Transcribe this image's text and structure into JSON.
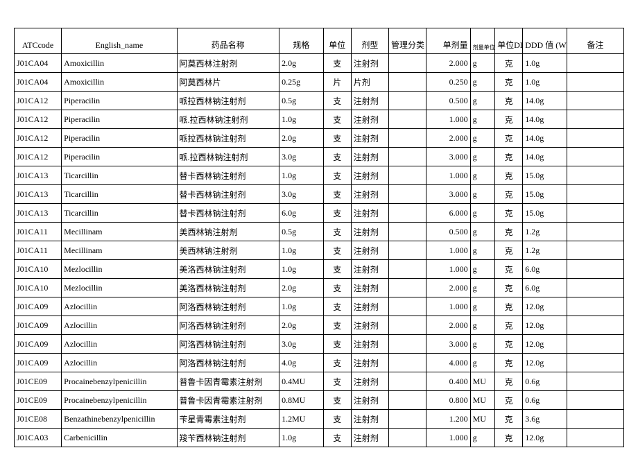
{
  "columns": [
    "ATCcode",
    "English_name",
    "药品名称",
    "规格",
    "单位",
    "剂型",
    "管理分类",
    "单剂量",
    "剂量单位",
    "单位DDD",
    "DDD 值 (WHO)",
    "备注"
  ],
  "rows": [
    [
      "J01CA04",
      "Amoxicillin",
      "阿莫西林注射剂",
      "2.0g",
      "支",
      "注射剂",
      "",
      "2.000",
      "g",
      "克",
      "1.0g",
      ""
    ],
    [
      "J01CA04",
      "Amoxicillin",
      "阿莫西林片",
      "0.25g",
      "片",
      "片剂",
      "",
      "0.250",
      "g",
      "克",
      "1.0g",
      ""
    ],
    [
      "J01CA12",
      "Piperacilin",
      "哌拉西林钠注射剂",
      "0.5g",
      "支",
      "注射剂",
      "",
      "0.500",
      "g",
      "克",
      "14.0g",
      ""
    ],
    [
      "J01CA12",
      "Piperacilin",
      "哌.拉西林钠注射剂",
      "1.0g",
      "支",
      "注射剂",
      "",
      "1.000",
      "g",
      "克",
      "14.0g",
      ""
    ],
    [
      "J01CA12",
      "Piperacilin",
      "哌拉西林钠注射剂",
      "2.0g",
      "支",
      "注射剂",
      "",
      "2.000",
      "g",
      "克",
      "14.0g",
      ""
    ],
    [
      "J01CA12",
      "Piperacilin",
      "哌.拉西林钠注射剂",
      "3.0g",
      "支",
      "注射剂",
      "",
      "3.000",
      "g",
      "克",
      "14.0g",
      ""
    ],
    [
      "J01CA13",
      "Ticarcillin",
      "替卡西林钠注射剂",
      "1.0g",
      "支",
      "注射剂",
      "",
      "1.000",
      "g",
      "克",
      "15.0g",
      ""
    ],
    [
      "J01CA13",
      "Ticarcillin",
      "替卡西林钠注射剂",
      "3.0g",
      "支",
      "注射剂",
      "",
      "3.000",
      "g",
      "克",
      "15.0g",
      ""
    ],
    [
      "J01CA13",
      "Ticarcillin",
      "替卡西林钠注射剂",
      "6.0g",
      "支",
      "注射剂",
      "",
      "6.000",
      "g",
      "克",
      "15.0g",
      ""
    ],
    [
      "J01CA11",
      "Mecillinam",
      "美西林钠注射剂",
      "0.5g",
      "支",
      "注射剂",
      "",
      "0.500",
      "g",
      "克",
      "1.2g",
      ""
    ],
    [
      "J01CA11",
      "Mecillinam",
      "美西林钠注射剂",
      "1.0g",
      "支",
      "注射剂",
      "",
      "1.000",
      "g",
      "克",
      "1.2g",
      ""
    ],
    [
      "J01CA10",
      "Mezlocillin",
      "美洛西林钠注射剂",
      "1.0g",
      "支",
      "注射剂",
      "",
      "1.000",
      "g",
      "克",
      "6.0g",
      ""
    ],
    [
      "J01CA10",
      "Mezlocillin",
      "美洛西林钠注射剂",
      "2.0g",
      "支",
      "注射剂",
      "",
      "2.000",
      "g",
      "克",
      "6.0g",
      ""
    ],
    [
      "J01CA09",
      "Azlocillin",
      "阿洛西林钠注射剂",
      "1.0g",
      "支",
      "注射剂",
      "",
      "1.000",
      "g",
      "克",
      "12.0g",
      ""
    ],
    [
      "J01CA09",
      "Azlocillin",
      "阿洛西林钠注射剂",
      "2.0g",
      "支",
      "注射剂",
      "",
      "2.000",
      "g",
      "克",
      "12.0g",
      ""
    ],
    [
      "J01CA09",
      "Azlocillin",
      "阿洛西林钠注射剂",
      "3.0g",
      "支",
      "注射剂",
      "",
      "3.000",
      "g",
      "克",
      "12.0g",
      ""
    ],
    [
      "J01CA09",
      "Azlocillin",
      "阿洛西林钠注射剂",
      "4.0g",
      "支",
      "注射剂",
      "",
      "4.000",
      "g",
      "克",
      "12.0g",
      ""
    ],
    [
      "J01CE09",
      "Procainebenzylpenicillin",
      "普鲁卡因青霉素注射剂",
      "0.4MU",
      "支",
      "注射剂",
      "",
      "0.400",
      "MU",
      "克",
      "0.6g",
      ""
    ],
    [
      "J01CE09",
      "Procainebenzylpenicillin",
      "普鲁卡因青霉素注射剂",
      "0.8MU",
      "支",
      "注射剂",
      "",
      "0.800",
      "MU",
      "克",
      "0.6g",
      ""
    ],
    [
      "J01CE08",
      "Benzathinebenzylpenicillin",
      "苄星青霉素注射剂",
      "1.2MU",
      "支",
      "注射剂",
      "",
      "1.200",
      "MU",
      "克",
      "3.6g",
      ""
    ],
    [
      "J01CA03",
      "Carbenicillin",
      "羧苄西林钠注射剂",
      "1.0g",
      "支",
      "注射剂",
      "",
      "1.000",
      "g",
      "克",
      "12.0g",
      ""
    ]
  ],
  "col_classes": [
    "col-atc",
    "col-eng",
    "col-name",
    "col-spec",
    "col-unit",
    "col-form",
    "col-mgmt",
    "col-dose",
    "col-doseu",
    "col-dddu",
    "col-ddd",
    "col-remark"
  ]
}
